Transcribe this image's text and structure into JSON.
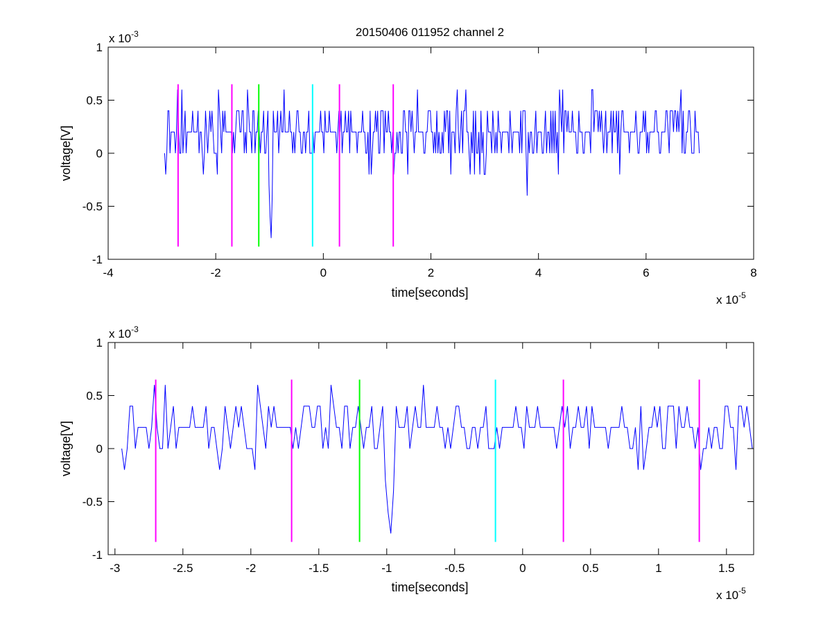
{
  "figure": {
    "title": "20150406 011952 channel 2",
    "colors": {
      "signal": "#0000ff",
      "magenta": "#ff00ff",
      "green": "#00ff00",
      "cyan": "#00ffff",
      "axes": "#000000"
    }
  },
  "chart_data": [
    {
      "type": "line",
      "title": "20150406 011952 channel 2",
      "xlabel": "time[seconds]",
      "ylabel": "voltage[V]",
      "x_exponent_label": "x 10",
      "x_exponent": "-5",
      "y_exponent_label": "x 10",
      "y_exponent": "-3",
      "x_unit_scale": 1e-05,
      "y_unit_scale": 0.001,
      "xlim": [
        -4,
        8
      ],
      "ylim": [
        -1,
        1
      ],
      "xticks": [
        -4,
        -2,
        0,
        2,
        4,
        6,
        8
      ],
      "xtick_labels": [
        "-4",
        "-2",
        "0",
        "2",
        "4",
        "6",
        "8"
      ],
      "yticks": [
        -1,
        -0.5,
        0,
        0.5,
        1
      ],
      "ytick_labels": [
        "-1",
        "-0.5",
        "0",
        "0.5",
        "1"
      ],
      "grid": false,
      "series": [
        {
          "color": "#0000ff",
          "x_range": [
            -2.95,
            7.0
          ],
          "approx_values_mV": "quantized noise between -0.2 and 0.4, baseline ~0.2, occasional spikes to 0.6 and a dip to -0.8 near x=-0.97, -0.4 near x=3.8"
        }
      ],
      "markers": [
        {
          "x": -2.7,
          "color": "#ff00ff",
          "y_range": [
            -0.88,
            0.65
          ]
        },
        {
          "x": -1.7,
          "color": "#ff00ff",
          "y_range": [
            -0.88,
            0.65
          ]
        },
        {
          "x": -1.2,
          "color": "#00ff00",
          "y_range": [
            -0.88,
            0.65
          ]
        },
        {
          "x": -0.2,
          "color": "#00ffff",
          "y_range": [
            -0.88,
            0.65
          ]
        },
        {
          "x": 0.3,
          "color": "#ff00ff",
          "y_range": [
            -0.88,
            0.65
          ]
        },
        {
          "x": 1.3,
          "color": "#ff00ff",
          "y_range": [
            -0.88,
            0.65
          ]
        }
      ]
    },
    {
      "type": "line",
      "title": "",
      "xlabel": "time[seconds]",
      "ylabel": "voltage[V]",
      "x_exponent_label": "x 10",
      "x_exponent": "-5",
      "y_exponent_label": "x 10",
      "y_exponent": "-3",
      "x_unit_scale": 1e-05,
      "y_unit_scale": 0.001,
      "xlim": [
        -3.05,
        1.7
      ],
      "ylim": [
        -1,
        1
      ],
      "xticks": [
        -3,
        -2.5,
        -2,
        -1.5,
        -1,
        -0.5,
        0,
        0.5,
        1,
        1.5
      ],
      "xtick_labels": [
        "-3",
        "-2.5",
        "-2",
        "-1.5",
        "-1",
        "-0.5",
        "0",
        "0.5",
        "1",
        "1.5"
      ],
      "yticks": [
        -1,
        -0.5,
        0,
        0.5,
        1
      ],
      "ytick_labels": [
        "-1",
        "-0.5",
        "0",
        "0.5",
        "1"
      ],
      "grid": false,
      "series": [
        {
          "color": "#0000ff",
          "x_range": [
            -2.95,
            1.7
          ],
          "approx_values_mV": "quantized noise between -0.2 and 0.4, baseline ~0.2, spikes to 0.6 near x=-2.62,-1.95,-1.4; dip to -0.8 near x=-0.97"
        }
      ],
      "markers": [
        {
          "x": -2.7,
          "color": "#ff00ff",
          "y_range": [
            -0.88,
            0.65
          ]
        },
        {
          "x": -1.7,
          "color": "#ff00ff",
          "y_range": [
            -0.88,
            0.65
          ]
        },
        {
          "x": -1.2,
          "color": "#00ff00",
          "y_range": [
            -0.88,
            0.65
          ]
        },
        {
          "x": -0.2,
          "color": "#00ffff",
          "y_range": [
            -0.88,
            0.65
          ]
        },
        {
          "x": 0.3,
          "color": "#ff00ff",
          "y_range": [
            -0.88,
            0.65
          ]
        },
        {
          "x": 1.3,
          "color": "#ff00ff",
          "y_range": [
            -0.88,
            0.65
          ]
        }
      ]
    }
  ]
}
